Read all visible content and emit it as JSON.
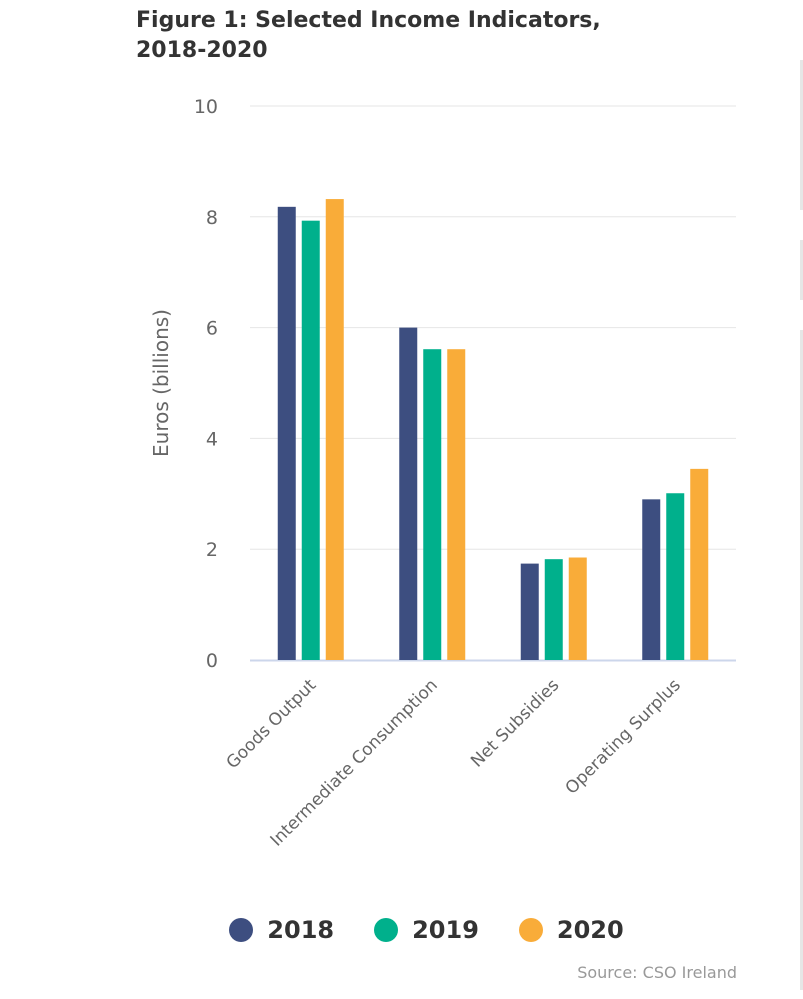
{
  "title_lines": [
    "Figure 1: Selected Income Indicators,",
    "2018-2020"
  ],
  "source": "Source: CSO Ireland",
  "chart_data": {
    "type": "bar",
    "title": "Figure 1: Selected Income Indicators, 2018-2020",
    "ylabel": "Euros (billions)",
    "xlabel": "",
    "ylim": [
      0,
      10
    ],
    "yticks": [
      "0",
      "2",
      "4",
      "6",
      "8",
      "10"
    ],
    "grid": true,
    "legend_position": "bottom",
    "categories": [
      "Goods Output",
      "Intermediate Consumption",
      "Net Subsidies",
      "Operating Surplus"
    ],
    "series": [
      {
        "name": "2018",
        "color": "#3d4e80",
        "values": [
          8.18,
          6.0,
          1.74,
          2.9
        ]
      },
      {
        "name": "2019",
        "color": "#00b08c",
        "values": [
          7.93,
          5.61,
          1.82,
          3.01
        ]
      },
      {
        "name": "2020",
        "color": "#f9ac39",
        "values": [
          8.32,
          5.61,
          1.85,
          3.45
        ]
      }
    ]
  }
}
